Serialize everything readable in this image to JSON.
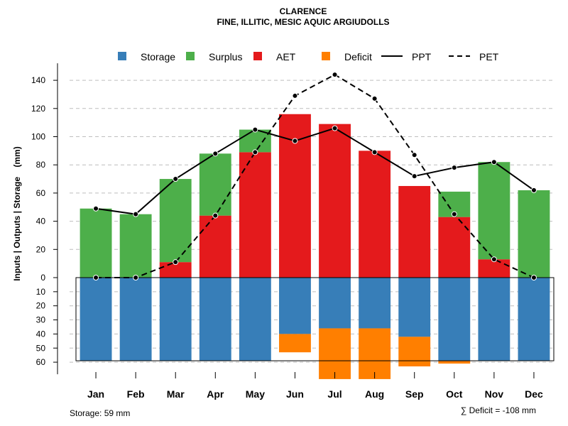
{
  "chart_data": {
    "type": "bar",
    "title": "CLARENCE",
    "subtitle": "FINE, ILLITIC, MESIC AQUIC ARGIUDOLLS",
    "ylabel": "Inputs | Outputs | Storage    (mm)",
    "categories": [
      "Jan",
      "Feb",
      "Mar",
      "Apr",
      "May",
      "Jun",
      "Jul",
      "Aug",
      "Sep",
      "Oct",
      "Nov",
      "Dec"
    ],
    "ylim": [
      -60,
      140
    ],
    "yticks_upper": [
      0,
      20,
      40,
      60,
      80,
      100,
      120,
      140
    ],
    "yticks_lower": [
      10,
      20,
      30,
      40,
      50,
      60
    ],
    "gridlines": true,
    "legend_position": "top",
    "legend": {
      "storage": "Storage",
      "surplus": "Surplus",
      "aet": "AET",
      "deficit": "Deficit",
      "ppt": "PPT",
      "pet": "PET"
    },
    "colors": {
      "storage": "#377EB8",
      "surplus": "#4DAF4A",
      "aet": "#E41A1C",
      "deficit": "#FF7F00",
      "line": "#000000",
      "grid": "#BEBEBE"
    },
    "series": {
      "aet": [
        0,
        0,
        11,
        44,
        89,
        116,
        109,
        90,
        65,
        43,
        13,
        0
      ],
      "surplus": [
        49,
        45,
        59,
        44,
        16,
        0,
        0,
        0,
        0,
        18,
        69,
        62
      ],
      "storage": [
        59,
        59,
        59,
        59,
        59,
        40,
        36,
        36,
        42,
        59,
        59,
        59
      ],
      "deficit": [
        0,
        0,
        0,
        0,
        0,
        13,
        36,
        36,
        21,
        2,
        0,
        0
      ],
      "ppt": [
        49,
        45,
        70,
        88,
        105,
        97,
        106,
        89,
        72,
        78,
        82,
        62
      ],
      "pet": [
        0,
        0,
        11,
        44,
        89,
        129,
        144,
        127,
        87,
        45,
        13,
        0
      ]
    },
    "notes": {
      "storage": "Storage: 59 mm",
      "deficit": "∑ Deficit = -108 mm"
    }
  }
}
